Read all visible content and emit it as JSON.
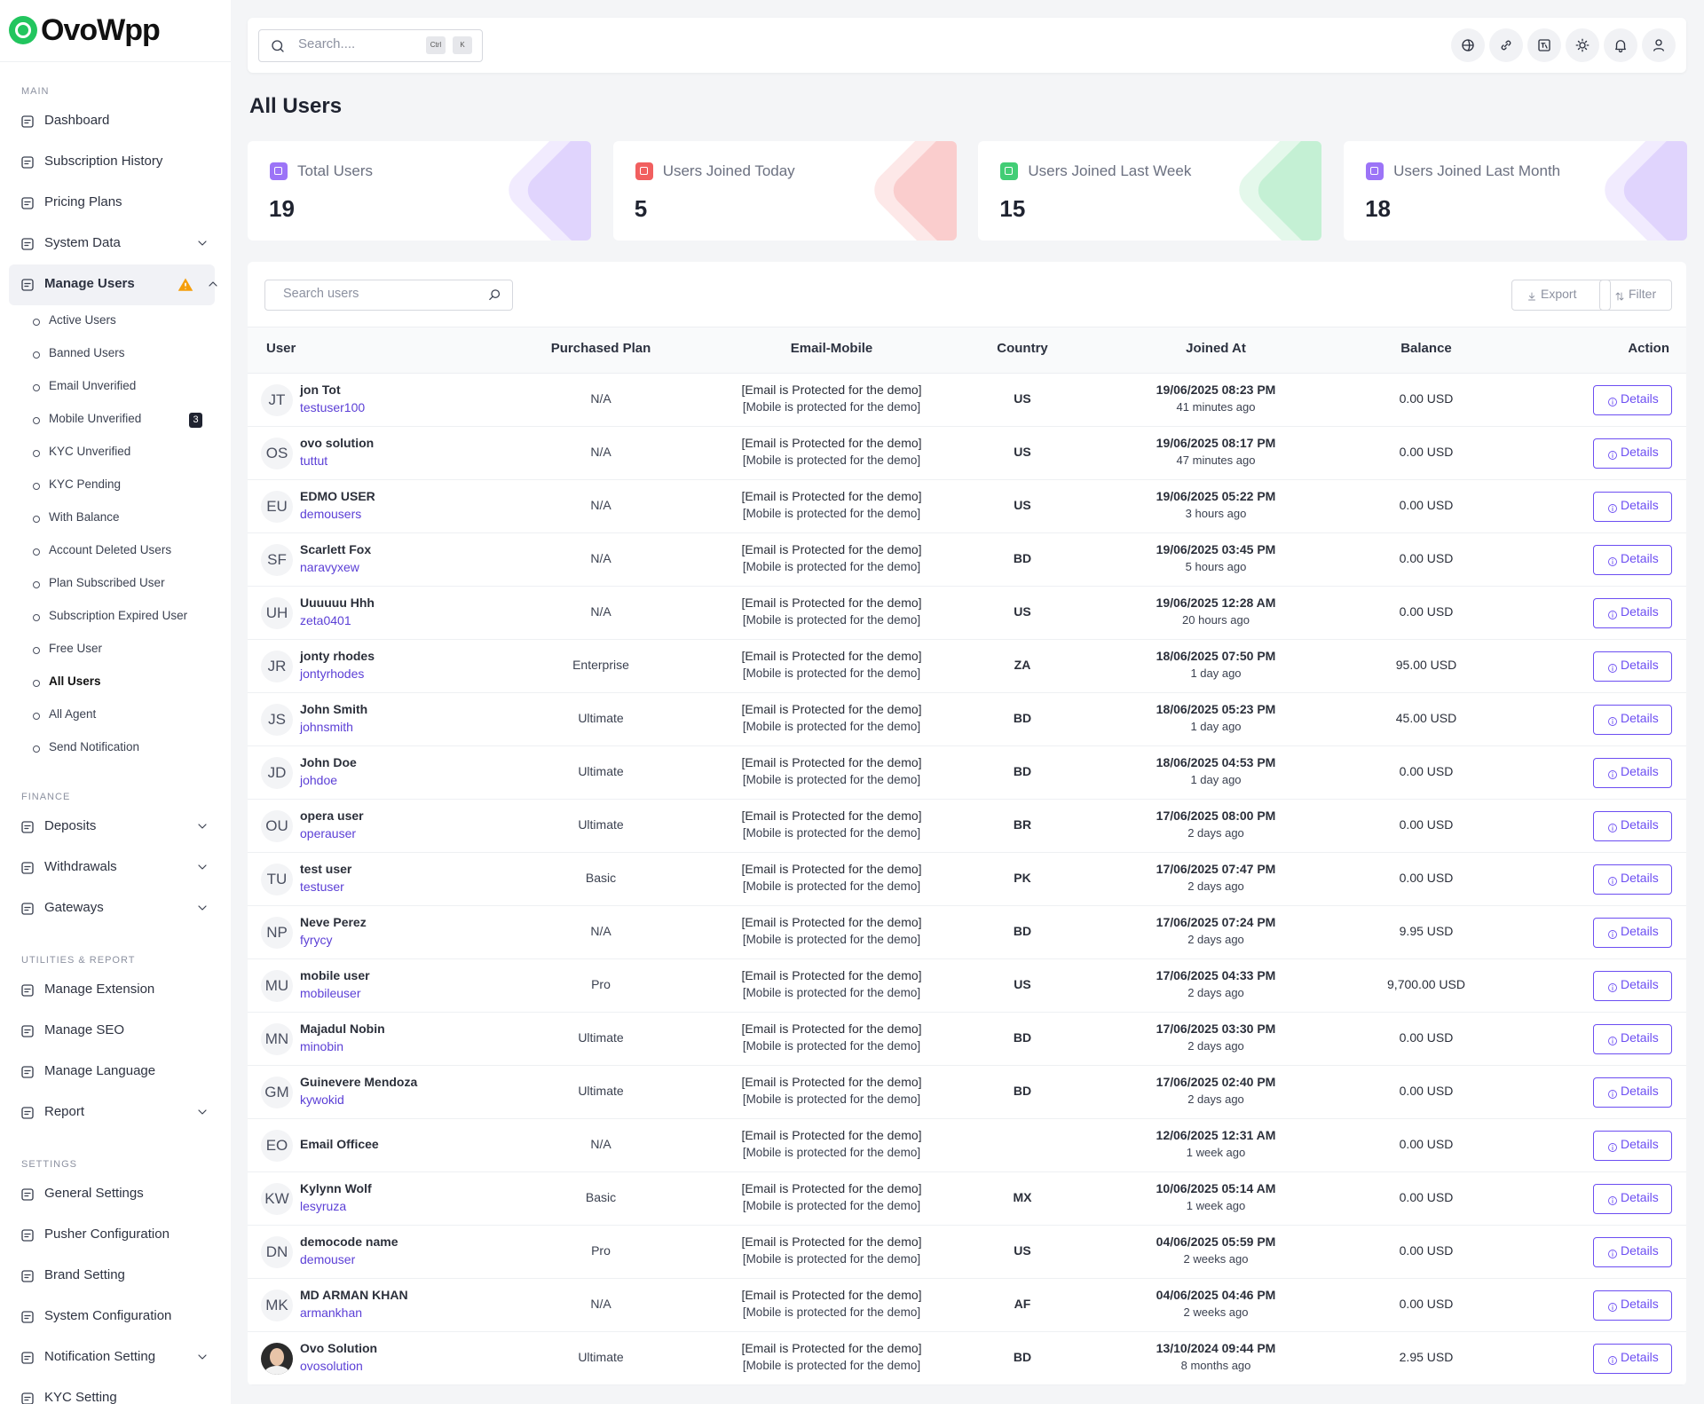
{
  "brand": {
    "logo": "OvoWpp"
  },
  "header": {
    "search_placeholder": "Search....",
    "shortcut": [
      "Ctrl",
      "K"
    ]
  },
  "sidebar": {
    "sections": [
      {
        "label": "MAIN",
        "items": [
          {
            "label": "Dashboard"
          },
          {
            "label": "Subscription History"
          },
          {
            "label": "Pricing Plans"
          },
          {
            "label": "System Data",
            "expandable": true
          },
          {
            "label": "Manage Users",
            "expandable": true,
            "active": true,
            "children": [
              {
                "label": "Active Users"
              },
              {
                "label": "Banned Users"
              },
              {
                "label": "Email Unverified"
              },
              {
                "label": "Mobile Unverified",
                "badge": 3
              },
              {
                "label": "KYC Unverified"
              },
              {
                "label": "KYC Pending"
              },
              {
                "label": "With Balance"
              },
              {
                "label": "Account Deleted Users"
              },
              {
                "label": "Plan Subscribed User"
              },
              {
                "label": "Subscription Expired User"
              },
              {
                "label": "Free User"
              },
              {
                "label": "All Users",
                "active": true
              },
              {
                "label": "All Agent"
              },
              {
                "label": "Send Notification"
              }
            ]
          }
        ]
      },
      {
        "label": "FINANCE",
        "items": [
          {
            "label": "Deposits",
            "expandable": true
          },
          {
            "label": "Withdrawals",
            "expandable": true
          },
          {
            "label": "Gateways",
            "expandable": true
          }
        ]
      },
      {
        "label": "UTILITIES & REPORT",
        "items": [
          {
            "label": "Manage Extension"
          },
          {
            "label": "Manage SEO"
          },
          {
            "label": "Manage Language"
          },
          {
            "label": "Report",
            "expandable": true
          }
        ]
      },
      {
        "label": "SETTINGS",
        "items": [
          {
            "label": "General Settings"
          },
          {
            "label": "Pusher Configuration"
          },
          {
            "label": "Brand Setting"
          },
          {
            "label": "System Configuration"
          },
          {
            "label": "Notification Setting",
            "expandable": true
          },
          {
            "label": "KYC Setting"
          }
        ]
      }
    ]
  },
  "page": {
    "title": "All Users"
  },
  "stats": [
    {
      "label": "Total Users",
      "value": 19,
      "color": "#8b5cf6"
    },
    {
      "label": "Users Joined Today",
      "value": 5,
      "color": "#ef4444"
    },
    {
      "label": "Users Joined Last Week",
      "value": 15,
      "color": "#22c55e"
    },
    {
      "label": "Users Joined Last Month",
      "value": 18,
      "color": "#8b5cf6"
    }
  ],
  "table": {
    "search_placeholder": "Search users",
    "buttons": [
      "Export",
      "Filter"
    ],
    "columns": [
      "User",
      "Purchased Plan",
      "Email-Mobile",
      "Country",
      "Joined At",
      "Balance",
      "Action"
    ],
    "rows": [
      {
        "initials": "JT",
        "name": "jon Tot",
        "username": "testuser100",
        "plan": "N/A",
        "email": "[Email is Protected for the demo]",
        "mobile": "[Mobile is protected for the demo]",
        "country": "US",
        "joined": "19/06/2025 08:23 PM",
        "ago": "41 minutes ago",
        "balance": "0.00 USD",
        "action": "Details"
      },
      {
        "initials": "OS",
        "name": "ovo solution",
        "username": "tuttut",
        "plan": "N/A",
        "email": "[Email is Protected for the demo]",
        "mobile": "[Mobile is protected for the demo]",
        "country": "US",
        "joined": "19/06/2025 08:17 PM",
        "ago": "47 minutes ago",
        "balance": "0.00 USD",
        "action": "Details"
      },
      {
        "initials": "EU",
        "name": "EDMO USER",
        "username": "demousers",
        "plan": "N/A",
        "email": "[Email is Protected for the demo]",
        "mobile": "[Mobile is protected for the demo]",
        "country": "US",
        "joined": "19/06/2025 05:22 PM",
        "ago": "3 hours ago",
        "balance": "0.00 USD",
        "action": "Details"
      },
      {
        "initials": "SF",
        "name": "Scarlett Fox",
        "username": "naravyxew",
        "plan": "N/A",
        "email": "[Email is Protected for the demo]",
        "mobile": "[Mobile is protected for the demo]",
        "country": "BD",
        "joined": "19/06/2025 03:45 PM",
        "ago": "5 hours ago",
        "balance": "0.00 USD",
        "action": "Details"
      },
      {
        "initials": "UH",
        "name": "Uuuuuu Hhh",
        "username": "zeta0401",
        "plan": "N/A",
        "email": "[Email is Protected for the demo]",
        "mobile": "[Mobile is protected for the demo]",
        "country": "US",
        "joined": "19/06/2025 12:28 AM",
        "ago": "20 hours ago",
        "balance": "0.00 USD",
        "action": "Details"
      },
      {
        "initials": "JR",
        "name": "jonty rhodes",
        "username": "jontyrhodes",
        "plan": "Enterprise",
        "email": "[Email is Protected for the demo]",
        "mobile": "[Mobile is protected for the demo]",
        "country": "ZA",
        "joined": "18/06/2025 07:50 PM",
        "ago": "1 day ago",
        "balance": "95.00 USD",
        "action": "Details"
      },
      {
        "initials": "JS",
        "name": "John Smith",
        "username": "johnsmith",
        "plan": "Ultimate",
        "email": "[Email is Protected for the demo]",
        "mobile": "[Mobile is protected for the demo]",
        "country": "BD",
        "joined": "18/06/2025 05:23 PM",
        "ago": "1 day ago",
        "balance": "45.00 USD",
        "action": "Details"
      },
      {
        "initials": "JD",
        "name": "John Doe",
        "username": "johdoe",
        "plan": "Ultimate",
        "email": "[Email is Protected for the demo]",
        "mobile": "[Mobile is protected for the demo]",
        "country": "BD",
        "joined": "18/06/2025 04:53 PM",
        "ago": "1 day ago",
        "balance": "0.00 USD",
        "action": "Details"
      },
      {
        "initials": "OU",
        "name": "opera user",
        "username": "operauser",
        "plan": "Ultimate",
        "email": "[Email is Protected for the demo]",
        "mobile": "[Mobile is protected for the demo]",
        "country": "BR",
        "joined": "17/06/2025 08:00 PM",
        "ago": "2 days ago",
        "balance": "0.00 USD",
        "action": "Details"
      },
      {
        "initials": "TU",
        "name": "test user",
        "username": "testuser",
        "plan": "Basic",
        "email": "[Email is Protected for the demo]",
        "mobile": "[Mobile is protected for the demo]",
        "country": "PK",
        "joined": "17/06/2025 07:47 PM",
        "ago": "2 days ago",
        "balance": "0.00 USD",
        "action": "Details"
      },
      {
        "initials": "NP",
        "name": "Neve Perez",
        "username": "fyrycy",
        "plan": "N/A",
        "email": "[Email is Protected for the demo]",
        "mobile": "[Mobile is protected for the demo]",
        "country": "BD",
        "joined": "17/06/2025 07:24 PM",
        "ago": "2 days ago",
        "balance": "9.95 USD",
        "action": "Details"
      },
      {
        "initials": "MU",
        "name": "mobile user",
        "username": "mobileuser",
        "plan": "Pro",
        "email": "[Email is Protected for the demo]",
        "mobile": "[Mobile is protected for the demo]",
        "country": "US",
        "joined": "17/06/2025 04:33 PM",
        "ago": "2 days ago",
        "balance": "9,700.00 USD",
        "action": "Details"
      },
      {
        "initials": "MN",
        "name": "Majadul Nobin",
        "username": "minobin",
        "plan": "Ultimate",
        "email": "[Email is Protected for the demo]",
        "mobile": "[Mobile is protected for the demo]",
        "country": "BD",
        "joined": "17/06/2025 03:30 PM",
        "ago": "2 days ago",
        "balance": "0.00 USD",
        "action": "Details"
      },
      {
        "initials": "GM",
        "name": "Guinevere Mendoza",
        "username": "kywokid",
        "plan": "Ultimate",
        "email": "[Email is Protected for the demo]",
        "mobile": "[Mobile is protected for the demo]",
        "country": "BD",
        "joined": "17/06/2025 02:40 PM",
        "ago": "2 days ago",
        "balance": "0.00 USD",
        "action": "Details"
      },
      {
        "initials": "EO",
        "name": "Email Officee",
        "plan": "N/A",
        "email": "[Email is Protected for the demo]",
        "mobile": "[Mobile is protected for the demo]",
        "joined": "12/06/2025 12:31 AM",
        "ago": "1 week ago",
        "balance": "0.00 USD",
        "action": "Details"
      },
      {
        "initials": "KW",
        "name": "Kylynn Wolf",
        "username": "lesyruza",
        "plan": "Basic",
        "email": "[Email is Protected for the demo]",
        "mobile": "[Mobile is protected for the demo]",
        "country": "MX",
        "joined": "10/06/2025 05:14 AM",
        "ago": "1 week ago",
        "balance": "0.00 USD",
        "action": "Details"
      },
      {
        "initials": "DN",
        "name": "democode name",
        "username": "demouser",
        "plan": "Pro",
        "email": "[Email is Protected for the demo]",
        "mobile": "[Mobile is protected for the demo]",
        "country": "US",
        "joined": "04/06/2025 05:59 PM",
        "ago": "2 weeks ago",
        "balance": "0.00 USD",
        "action": "Details"
      },
      {
        "initials": "MK",
        "name": "MD ARMAN KHAN",
        "username": "armankhan",
        "plan": "N/A",
        "email": "[Email is Protected for the demo]",
        "mobile": "[Mobile is protected for the demo]",
        "country": "AF",
        "joined": "04/06/2025 04:46 PM",
        "ago": "2 weeks ago",
        "balance": "0.00 USD",
        "action": "Details"
      },
      {
        "name": "Ovo Solution",
        "username": "ovosolution",
        "plan": "Ultimate",
        "email": "[Email is Protected for the demo]",
        "mobile": "[Mobile is protected for the demo]",
        "country": "BD",
        "joined": "13/10/2024 09:44 PM",
        "ago": "8 months ago",
        "balance": "2.95 USD",
        "action": "Details"
      }
    ]
  }
}
